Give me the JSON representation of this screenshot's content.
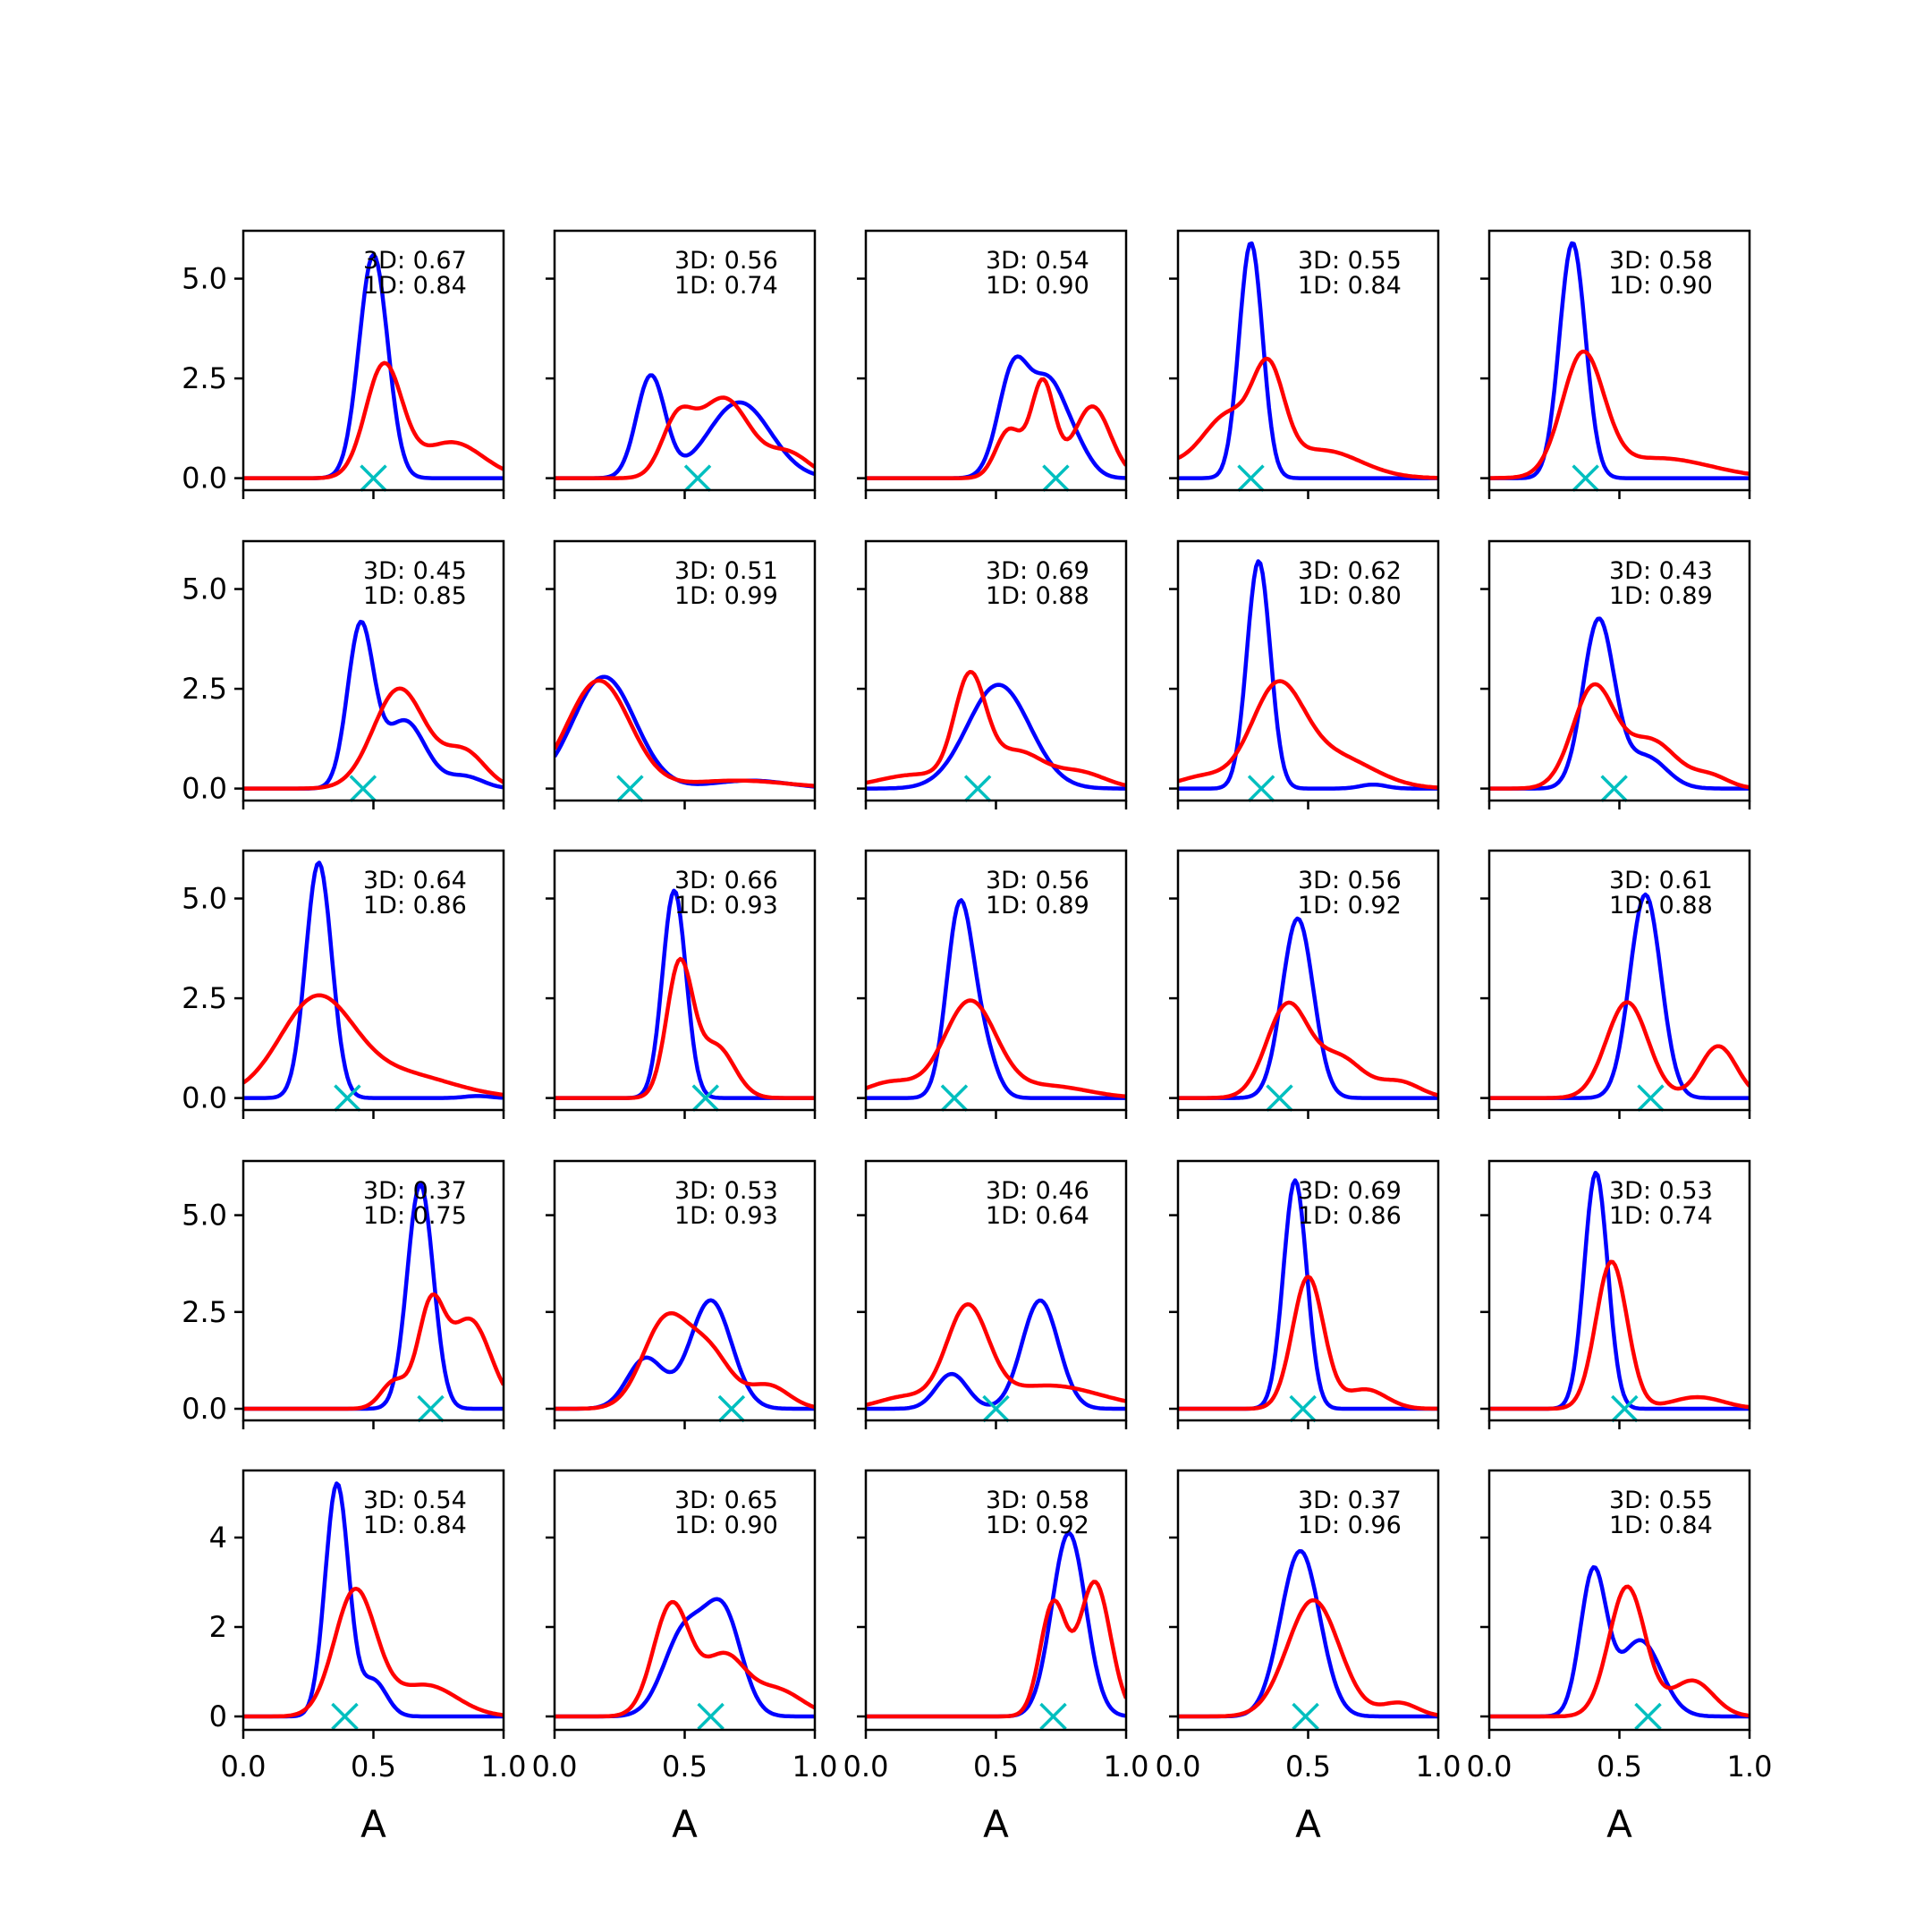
{
  "colors": {
    "series_3d": "#0000ff",
    "series_1d": "#ff0000",
    "marker": "#00bfbf",
    "axes": "#000000",
    "background": "#ffffff"
  },
  "chart_data": {
    "type": "line",
    "layout": {
      "rows": 5,
      "cols": 5
    },
    "xlabel": "A",
    "xlim": [
      0,
      1
    ],
    "x_ticks": [
      0.0,
      0.5,
      1.0
    ],
    "x_tick_labels": [
      "0.0",
      "0.5",
      "1.0"
    ],
    "rows": [
      {
        "ylim": [
          -0.3,
          6.2
        ],
        "y_ticks": [
          0,
          2.5,
          5.0
        ],
        "y_tick_labels": [
          "0.0",
          "2.5",
          "5.0"
        ]
      },
      {
        "ylim": [
          -0.3,
          6.2
        ],
        "y_ticks": [
          0,
          2.5,
          5.0
        ],
        "y_tick_labels": [
          "0.0",
          "2.5",
          "5.0"
        ]
      },
      {
        "ylim": [
          -0.3,
          6.2
        ],
        "y_ticks": [
          0,
          2.5,
          5.0
        ],
        "y_tick_labels": [
          "0.0",
          "2.5",
          "5.0"
        ]
      },
      {
        "ylim": [
          -0.3,
          6.4
        ],
        "y_ticks": [
          0,
          2.5,
          5.0
        ],
        "y_tick_labels": [
          "0.0",
          "2.5",
          "5.0"
        ]
      },
      {
        "ylim": [
          -0.3,
          5.5
        ],
        "y_ticks": [
          0,
          2,
          4
        ],
        "y_tick_labels": [
          "0",
          "2",
          "4"
        ]
      }
    ],
    "panels": [
      {
        "label_3d": "3D: 0.67",
        "label_1d": "1D: 0.84",
        "marker_x": 0.5,
        "series_3d": {
          "peaks": [
            [
              0.5,
              5.6,
              0.055
            ]
          ],
          "offset": 0
        },
        "series_1d": {
          "peaks": [
            [
              0.54,
              2.8,
              0.07
            ],
            [
              0.8,
              0.9,
              0.12
            ]
          ],
          "offset": 0
        }
      },
      {
        "label_3d": "3D: 0.56",
        "label_1d": "1D: 0.74",
        "marker_x": 0.55,
        "series_3d": {
          "peaks": [
            [
              0.37,
              2.55,
              0.055
            ],
            [
              0.71,
              1.9,
              0.12
            ]
          ],
          "offset": 0
        },
        "series_1d": {
          "peaks": [
            [
              0.47,
              1.3,
              0.06
            ],
            [
              0.65,
              2.0,
              0.1
            ],
            [
              0.9,
              0.6,
              0.08
            ]
          ],
          "offset": 0
        }
      },
      {
        "label_3d": "3D: 0.54",
        "label_1d": "1D: 0.90",
        "marker_x": 0.73,
        "series_3d": {
          "peaks": [
            [
              0.57,
              2.8,
              0.06
            ],
            [
              0.7,
              2.1,
              0.06
            ],
            [
              0.8,
              0.8,
              0.06
            ]
          ],
          "offset": 0
        },
        "series_1d": {
          "peaks": [
            [
              0.55,
              1.2,
              0.05
            ],
            [
              0.68,
              2.4,
              0.045
            ],
            [
              0.87,
              1.8,
              0.07
            ]
          ],
          "offset": 0
        }
      },
      {
        "label_3d": "3D: 0.55",
        "label_1d": "1D: 0.84",
        "marker_x": 0.28,
        "series_3d": {
          "peaks": [
            [
              0.28,
              5.9,
              0.045
            ]
          ],
          "offset": 0
        },
        "series_1d": {
          "peaks": [
            [
              0.2,
              1.5,
              0.1
            ],
            [
              0.35,
              2.2,
              0.06
            ],
            [
              0.55,
              0.7,
              0.15
            ]
          ],
          "offset": 0.3
        }
      },
      {
        "label_3d": "3D: 0.58",
        "label_1d": "1D: 0.90",
        "marker_x": 0.37,
        "series_3d": {
          "peaks": [
            [
              0.32,
              5.9,
              0.05
            ]
          ],
          "offset": 0
        },
        "series_1d": {
          "peaks": [
            [
              0.36,
              3.0,
              0.08
            ],
            [
              0.65,
              0.5,
              0.2
            ]
          ],
          "offset": 0
        }
      },
      {
        "label_3d": "3D: 0.45",
        "label_1d": "1D: 0.85",
        "marker_x": 0.46,
        "series_3d": {
          "peaks": [
            [
              0.45,
              4.0,
              0.05
            ],
            [
              0.62,
              1.7,
              0.08
            ],
            [
              0.85,
              0.3,
              0.07
            ]
          ],
          "offset": 0
        },
        "series_1d": {
          "peaks": [
            [
              0.6,
              2.5,
              0.1
            ],
            [
              0.85,
              0.9,
              0.08
            ]
          ],
          "offset": 0
        }
      },
      {
        "label_3d": "3D: 0.51",
        "label_1d": "1D: 0.99",
        "marker_x": 0.29,
        "series_3d": {
          "peaks": [
            [
              0.19,
              2.8,
              0.12
            ],
            [
              0.75,
              0.2,
              0.15
            ]
          ],
          "offset": 0
        },
        "series_1d": {
          "peaks": [
            [
              0.17,
              2.7,
              0.12
            ],
            [
              0.7,
              0.2,
              0.2
            ]
          ],
          "offset": 0
        }
      },
      {
        "label_3d": "3D: 0.69",
        "label_1d": "1D: 0.88",
        "marker_x": 0.43,
        "series_3d": {
          "peaks": [
            [
              0.51,
              2.6,
              0.12
            ]
          ],
          "offset": 0
        },
        "series_1d": {
          "peaks": [
            [
              0.2,
              0.35,
              0.15
            ],
            [
              0.4,
              2.6,
              0.06
            ],
            [
              0.58,
              0.9,
              0.1
            ],
            [
              0.82,
              0.4,
              0.1
            ]
          ],
          "offset": 0
        }
      },
      {
        "label_3d": "3D: 0.62",
        "label_1d": "1D: 0.80",
        "marker_x": 0.32,
        "series_3d": {
          "peaks": [
            [
              0.31,
              5.7,
              0.045
            ],
            [
              0.75,
              0.1,
              0.05
            ]
          ],
          "offset": 0
        },
        "series_1d": {
          "peaks": [
            [
              0.38,
              2.4,
              0.1
            ],
            [
              0.6,
              0.8,
              0.15
            ],
            [
              0.1,
              0.3,
              0.1
            ]
          ],
          "offset": 0
        }
      },
      {
        "label_3d": "3D: 0.43",
        "label_1d": "1D: 0.89",
        "marker_x": 0.48,
        "series_3d": {
          "peaks": [
            [
              0.42,
              4.2,
              0.06
            ],
            [
              0.6,
              0.8,
              0.08
            ]
          ],
          "offset": 0
        },
        "series_1d": {
          "peaks": [
            [
              0.4,
              2.5,
              0.08
            ],
            [
              0.62,
              1.2,
              0.1
            ],
            [
              0.85,
              0.3,
              0.07
            ]
          ],
          "offset": 0
        }
      },
      {
        "label_3d": "3D: 0.64",
        "label_1d": "1D: 0.86",
        "marker_x": 0.4,
        "series_3d": {
          "peaks": [
            [
              0.29,
              5.9,
              0.05
            ],
            [
              0.9,
              0.05,
              0.05
            ]
          ],
          "offset": 0
        },
        "series_1d": {
          "peaks": [
            [
              0.28,
              2.4,
              0.14
            ],
            [
              0.6,
              0.6,
              0.2
            ]
          ],
          "offset": 0.05
        }
      },
      {
        "label_3d": "3D: 0.66",
        "label_1d": "1D: 0.93",
        "marker_x": 0.58,
        "series_3d": {
          "peaks": [
            [
              0.46,
              5.2,
              0.045
            ]
          ],
          "offset": 0
        },
        "series_1d": {
          "peaks": [
            [
              0.48,
              3.3,
              0.05
            ],
            [
              0.62,
              1.3,
              0.07
            ]
          ],
          "offset": 0
        }
      },
      {
        "label_3d": "3D: 0.56",
        "label_1d": "1D: 0.89",
        "marker_x": 0.34,
        "series_3d": {
          "peaks": [
            [
              0.36,
              4.7,
              0.05
            ],
            [
              0.45,
              1.2,
              0.05
            ]
          ],
          "offset": 0
        },
        "series_1d": {
          "peaks": [
            [
              0.1,
              0.4,
              0.1
            ],
            [
              0.4,
              2.4,
              0.1
            ],
            [
              0.7,
              0.3,
              0.15
            ]
          ],
          "offset": 0
        }
      },
      {
        "label_3d": "3D: 0.56",
        "label_1d": "1D: 0.92",
        "marker_x": 0.39,
        "series_3d": {
          "peaks": [
            [
              0.46,
              4.5,
              0.06
            ]
          ],
          "offset": 0
        },
        "series_1d": {
          "peaks": [
            [
              0.42,
              2.3,
              0.08
            ],
            [
              0.62,
              1.0,
              0.09
            ],
            [
              0.85,
              0.4,
              0.08
            ]
          ],
          "offset": 0
        }
      },
      {
        "label_3d": "3D: 0.61",
        "label_1d": "1D: 0.88",
        "marker_x": 0.62,
        "series_3d": {
          "peaks": [
            [
              0.6,
              5.1,
              0.06
            ]
          ],
          "offset": 0
        },
        "series_1d": {
          "peaks": [
            [
              0.53,
              2.4,
              0.08
            ],
            [
              0.88,
              1.3,
              0.07
            ]
          ],
          "offset": 0
        }
      },
      {
        "label_3d": "3D: 0.37",
        "label_1d": "1D: 0.75",
        "marker_x": 0.72,
        "series_3d": {
          "peaks": [
            [
              0.68,
              5.8,
              0.05
            ]
          ],
          "offset": 0
        },
        "series_1d": {
          "peaks": [
            [
              0.58,
              0.7,
              0.05
            ],
            [
              0.72,
              2.5,
              0.05
            ],
            [
              0.87,
              2.3,
              0.08
            ]
          ],
          "offset": 0
        }
      },
      {
        "label_3d": "3D: 0.53",
        "label_1d": "1D: 0.93",
        "marker_x": 0.68,
        "series_3d": {
          "peaks": [
            [
              0.35,
              1.3,
              0.07
            ],
            [
              0.6,
              2.8,
              0.08
            ]
          ],
          "offset": 0
        },
        "series_1d": {
          "peaks": [
            [
              0.43,
              2.3,
              0.09
            ],
            [
              0.6,
              1.3,
              0.08
            ],
            [
              0.82,
              0.6,
              0.08
            ]
          ],
          "offset": 0
        }
      },
      {
        "label_3d": "3D: 0.46",
        "label_1d": "1D: 0.64",
        "marker_x": 0.5,
        "series_3d": {
          "peaks": [
            [
              0.33,
              0.9,
              0.06
            ],
            [
              0.67,
              2.8,
              0.07
            ]
          ],
          "offset": 0
        },
        "series_1d": {
          "peaks": [
            [
              0.15,
              0.3,
              0.1
            ],
            [
              0.39,
              2.5,
              0.08
            ],
            [
              0.7,
              0.6,
              0.2
            ]
          ],
          "offset": 0
        }
      },
      {
        "label_3d": "3D: 0.69",
        "label_1d": "1D: 0.86",
        "marker_x": 0.48,
        "series_3d": {
          "peaks": [
            [
              0.45,
              5.9,
              0.045
            ]
          ],
          "offset": 0
        },
        "series_1d": {
          "peaks": [
            [
              0.5,
              3.4,
              0.06
            ],
            [
              0.72,
              0.5,
              0.08
            ]
          ],
          "offset": 0
        }
      },
      {
        "label_3d": "3D: 0.53",
        "label_1d": "1D: 0.74",
        "marker_x": 0.52,
        "series_3d": {
          "peaks": [
            [
              0.41,
              6.1,
              0.045
            ]
          ],
          "offset": 0
        },
        "series_1d": {
          "peaks": [
            [
              0.47,
              3.8,
              0.06
            ],
            [
              0.8,
              0.3,
              0.1
            ]
          ],
          "offset": 0
        }
      },
      {
        "label_3d": "3D: 0.54",
        "label_1d": "1D: 0.84",
        "marker_x": 0.39,
        "series_3d": {
          "peaks": [
            [
              0.36,
              5.2,
              0.045
            ],
            [
              0.5,
              0.8,
              0.05
            ]
          ],
          "offset": 0
        },
        "series_1d": {
          "peaks": [
            [
              0.43,
              2.8,
              0.08
            ],
            [
              0.7,
              0.7,
              0.12
            ]
          ],
          "offset": 0
        }
      },
      {
        "label_3d": "3D: 0.65",
        "label_1d": "1D: 0.90",
        "marker_x": 0.6,
        "series_3d": {
          "peaks": [
            [
              0.5,
              1.9,
              0.08
            ],
            [
              0.65,
              2.2,
              0.07
            ]
          ],
          "offset": 0
        },
        "series_1d": {
          "peaks": [
            [
              0.45,
              2.5,
              0.07
            ],
            [
              0.65,
              1.3,
              0.08
            ],
            [
              0.85,
              0.6,
              0.1
            ]
          ],
          "offset": 0
        }
      },
      {
        "label_3d": "3D: 0.58",
        "label_1d": "1D: 0.92",
        "marker_x": 0.72,
        "series_3d": {
          "peaks": [
            [
              0.78,
              4.1,
              0.065
            ]
          ],
          "offset": 0
        },
        "series_1d": {
          "peaks": [
            [
              0.72,
              2.5,
              0.05
            ],
            [
              0.88,
              3.0,
              0.06
            ]
          ],
          "offset": 0
        }
      },
      {
        "label_3d": "3D: 0.37",
        "label_1d": "1D: 0.96",
        "marker_x": 0.49,
        "series_3d": {
          "peaks": [
            [
              0.47,
              3.7,
              0.075
            ]
          ],
          "offset": 0
        },
        "series_1d": {
          "peaks": [
            [
              0.52,
              2.6,
              0.1
            ],
            [
              0.85,
              0.3,
              0.07
            ]
          ],
          "offset": 0
        }
      },
      {
        "label_3d": "3D: 0.55",
        "label_1d": "1D: 0.84",
        "marker_x": 0.61,
        "series_3d": {
          "peaks": [
            [
              0.4,
              3.2,
              0.05
            ],
            [
              0.58,
              1.7,
              0.08
            ]
          ],
          "offset": 0
        },
        "series_1d": {
          "peaks": [
            [
              0.53,
              2.9,
              0.07
            ],
            [
              0.78,
              0.8,
              0.08
            ]
          ],
          "offset": 0
        }
      }
    ]
  }
}
